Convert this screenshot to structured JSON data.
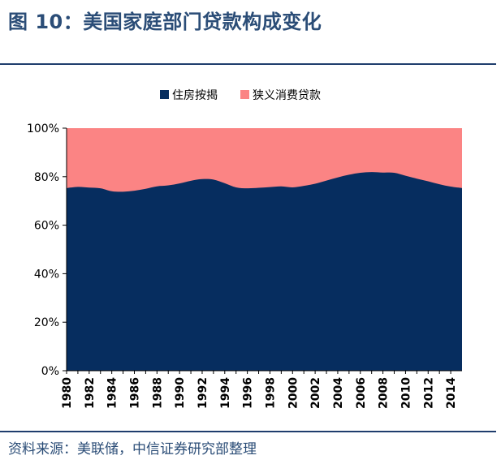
{
  "figure": {
    "title": "图 10：美国家庭部门贷款构成变化",
    "source": "资料来源：美联储，中信证券研究部整理"
  },
  "colors": {
    "mortgage": "#062d5f",
    "consumer": "#fb8484",
    "title": "#2b4d77",
    "rule": "#1f3d6d"
  },
  "chart_data": {
    "type": "area",
    "stacked": true,
    "normalized": true,
    "title": "",
    "xlabel": "",
    "ylabel": "",
    "x": [
      1980,
      1981,
      1982,
      1983,
      1984,
      1985,
      1986,
      1987,
      1988,
      1989,
      1990,
      1991,
      1992,
      1993,
      1994,
      1995,
      1996,
      1997,
      1998,
      1999,
      2000,
      2001,
      2002,
      2003,
      2004,
      2005,
      2006,
      2007,
      2008,
      2009,
      2010,
      2011,
      2012,
      2013,
      2014,
      2015
    ],
    "x_tick_labels": [
      "1980",
      "1982",
      "1984",
      "1986",
      "1988",
      "1990",
      "1992",
      "1994",
      "1996",
      "1998",
      "2000",
      "2002",
      "2004",
      "2006",
      "2008",
      "2010",
      "2012",
      "2014"
    ],
    "y_tick_labels": [
      "0%",
      "20%",
      "40%",
      "60%",
      "80%",
      "100%"
    ],
    "ylim": [
      0,
      100
    ],
    "legend_position": "top",
    "series": [
      {
        "name": "住房按揭",
        "values": [
          75.3,
          75.8,
          75.5,
          75.2,
          74.0,
          73.8,
          74.2,
          75.0,
          76.0,
          76.4,
          77.2,
          78.3,
          79.0,
          78.8,
          77.3,
          75.6,
          75.2,
          75.4,
          75.7,
          76.0,
          75.6,
          76.2,
          77.1,
          78.4,
          79.7,
          80.8,
          81.6,
          81.9,
          81.7,
          81.6,
          80.4,
          79.2,
          78.1,
          76.9,
          75.9,
          75.3
        ]
      },
      {
        "name": "狭义消费贷款",
        "values": [
          24.7,
          24.2,
          24.5,
          24.8,
          26.0,
          26.2,
          25.8,
          25.0,
          24.0,
          23.6,
          22.8,
          21.7,
          21.0,
          21.2,
          22.7,
          24.4,
          24.8,
          24.6,
          24.3,
          24.0,
          24.4,
          23.8,
          22.9,
          21.6,
          20.3,
          19.2,
          18.4,
          18.1,
          18.3,
          18.4,
          19.6,
          20.8,
          21.9,
          23.1,
          24.1,
          24.7
        ]
      }
    ]
  }
}
